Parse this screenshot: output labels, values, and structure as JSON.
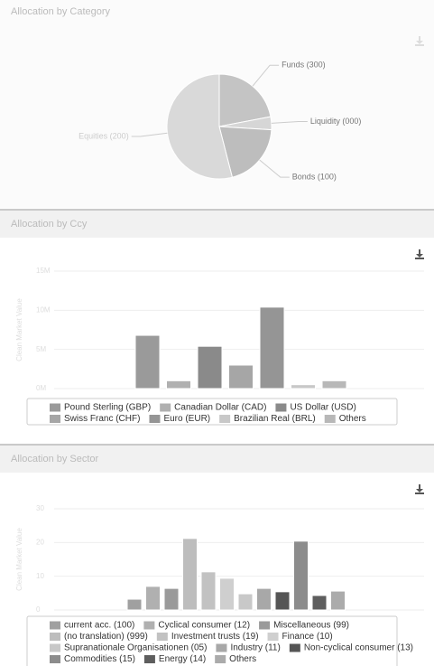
{
  "chart_data": [
    {
      "type": "pie",
      "title": "Allocation by Category",
      "categories": [
        "Funds (300)",
        "Liquidity (000)",
        "Bonds (100)",
        "Equities (200)"
      ],
      "values": [
        22,
        4,
        20,
        54
      ],
      "colors": [
        "#c4c4c4",
        "#d6d6d6",
        "#bdbdbd",
        "#d9d9d9"
      ]
    },
    {
      "type": "bar",
      "title": "Allocation by Ccy",
      "ylabel": "Clean Market Value",
      "categories": [
        "Pound Sterling (GBP)",
        "Canadian Dollar (CAD)",
        "US Dollar (USD)",
        "Swiss Franc (CHF)",
        "Euro (EUR)",
        "Brazilian Real (BRL)",
        "Others"
      ],
      "values": [
        6800000,
        1000000,
        5400000,
        3000000,
        10400000,
        500000,
        1000000
      ],
      "colors": [
        "#9a9a9a",
        "#b0b0b0",
        "#8a8a8a",
        "#a6a6a6",
        "#959595",
        "#c8c8c8",
        "#b8b8b8"
      ],
      "ylim": [
        0,
        15000000
      ],
      "yticks": [
        {
          "value": 0,
          "label": "0M"
        },
        {
          "value": 5000000,
          "label": "5M"
        },
        {
          "value": 10000000,
          "label": "10M"
        },
        {
          "value": 15000000,
          "label": "15M"
        }
      ],
      "grid": true
    },
    {
      "type": "bar",
      "title": "Allocation by Sector",
      "ylabel": "Clean Market Value",
      "categories": [
        "current acc. (100)",
        "Cyclical consumer (12)",
        "Miscellaneous (99)",
        "(no translation) (999)",
        "Investment trusts (19)",
        "Finance (10)",
        "Supranationale Organisationen (05)",
        "Industry (11)",
        "Non-cyclical consumer (13)",
        "Commodities (15)",
        "Energy (14)",
        "Others"
      ],
      "values": [
        3.2,
        7.0,
        6.4,
        21.2,
        11.3,
        9.4,
        4.8,
        6.4,
        5.4,
        20.4,
        4.3,
        5.6
      ],
      "colors": [
        "#a0a0a0",
        "#b0b0b0",
        "#9a9a9a",
        "#bdbdbd",
        "#c2c2c2",
        "#cfcfcf",
        "#c8c8c8",
        "#a8a8a8",
        "#555555",
        "#8c8c8c",
        "#5e5e5e",
        "#ababab"
      ],
      "ylim": [
        0,
        30
      ],
      "yticks": [
        0,
        10,
        20,
        30
      ],
      "grid": true
    }
  ]
}
